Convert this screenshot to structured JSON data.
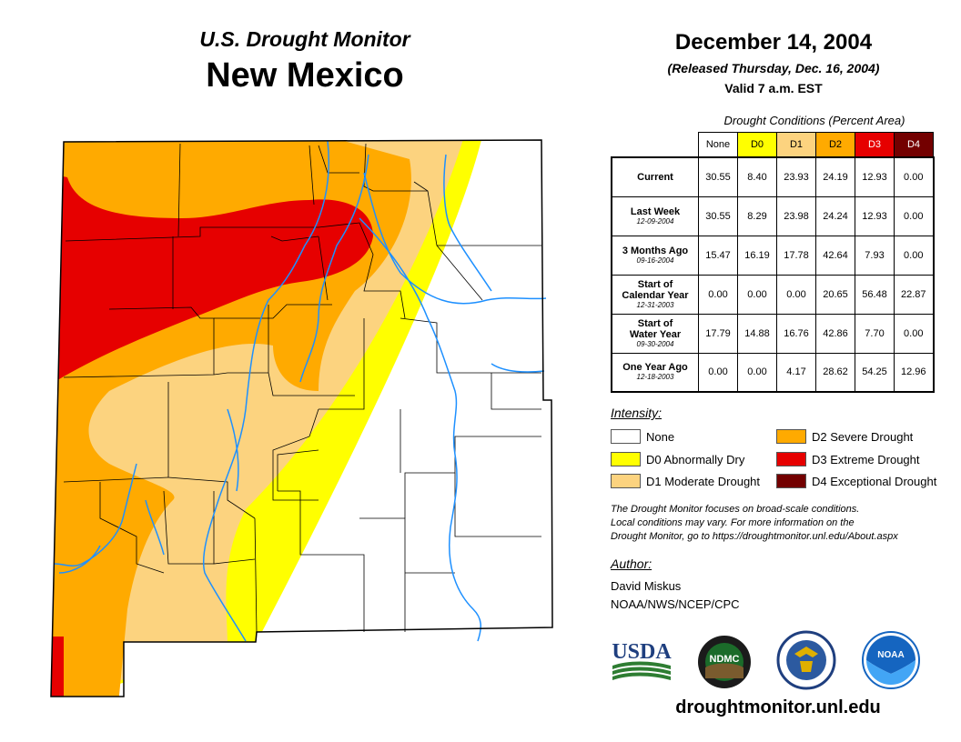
{
  "header": {
    "subtitle": "U.S. Drought Monitor",
    "state": "New Mexico",
    "date": "December 14, 2004",
    "released": "(Released Thursday, Dec. 16, 2004)",
    "valid": "Valid 7 a.m. EST"
  },
  "table": {
    "caption": "Drought Conditions (Percent Area)",
    "columns": [
      {
        "label": "None",
        "color": "#ffffff",
        "text_color": "#000000"
      },
      {
        "label": "D0",
        "color": "#ffff00",
        "text_color": "#000000"
      },
      {
        "label": "D1",
        "color": "#fcd37f",
        "text_color": "#000000"
      },
      {
        "label": "D2",
        "color": "#ffaa00",
        "text_color": "#000000"
      },
      {
        "label": "D3",
        "color": "#e60000",
        "text_color": "#ffffff"
      },
      {
        "label": "D4",
        "color": "#730000",
        "text_color": "#ffffff"
      }
    ],
    "rows": [
      {
        "label1": "Current",
        "label2": "",
        "date": "",
        "values": [
          "30.55",
          "8.40",
          "23.93",
          "24.19",
          "12.93",
          "0.00"
        ]
      },
      {
        "label1": "Last Week",
        "label2": "",
        "date": "12-09-2004",
        "values": [
          "30.55",
          "8.29",
          "23.98",
          "24.24",
          "12.93",
          "0.00"
        ]
      },
      {
        "label1": "3 Months Ago",
        "label2": "",
        "date": "09-16-2004",
        "values": [
          "15.47",
          "16.19",
          "17.78",
          "42.64",
          "7.93",
          "0.00"
        ]
      },
      {
        "label1": "Start of",
        "label2": "Calendar Year",
        "date": "12-31-2003",
        "values": [
          "0.00",
          "0.00",
          "0.00",
          "20.65",
          "56.48",
          "22.87"
        ]
      },
      {
        "label1": "Start of",
        "label2": "Water Year",
        "date": "09-30-2004",
        "values": [
          "17.79",
          "14.88",
          "16.76",
          "42.86",
          "7.70",
          "0.00"
        ]
      },
      {
        "label1": "One Year Ago",
        "label2": "",
        "date": "12-18-2003",
        "values": [
          "0.00",
          "0.00",
          "4.17",
          "28.62",
          "54.25",
          "12.96"
        ]
      }
    ]
  },
  "legend": {
    "title": "Intensity:",
    "items": [
      {
        "code": "none",
        "label": "None",
        "color": "#ffffff"
      },
      {
        "code": "d0",
        "label": "D0 Abnormally Dry",
        "color": "#ffff00"
      },
      {
        "code": "d1",
        "label": "D1 Moderate Drought",
        "color": "#fcd37f"
      },
      {
        "code": "d2",
        "label": "D2 Severe Drought",
        "color": "#ffaa00"
      },
      {
        "code": "d3",
        "label": "D3 Extreme Drought",
        "color": "#e60000"
      },
      {
        "code": "d4",
        "label": "D4 Exceptional Drought",
        "color": "#730000"
      }
    ]
  },
  "note": {
    "line1": "The Drought Monitor focuses on broad-scale conditions.",
    "line2": "Local conditions may vary. For more information on the",
    "line3": "Drought Monitor, go to https://droughtmonitor.unl.edu/About.aspx"
  },
  "author": {
    "title": "Author:",
    "name": "David Miskus",
    "org": "NOAA/NWS/NCEP/CPC"
  },
  "logos": {
    "usda": "USDA",
    "ndmc": "NDMC",
    "noaa": "NOAA"
  },
  "footer": {
    "url": "droughtmonitor.unl.edu"
  },
  "colors": {
    "river": "#1e90ff",
    "county_line": "#000000",
    "usda_blue": "#1f3f7f",
    "usda_green": "#2e7d32",
    "ndmc_green": "#1b6b2a",
    "noaa_blue": "#1565c0"
  }
}
